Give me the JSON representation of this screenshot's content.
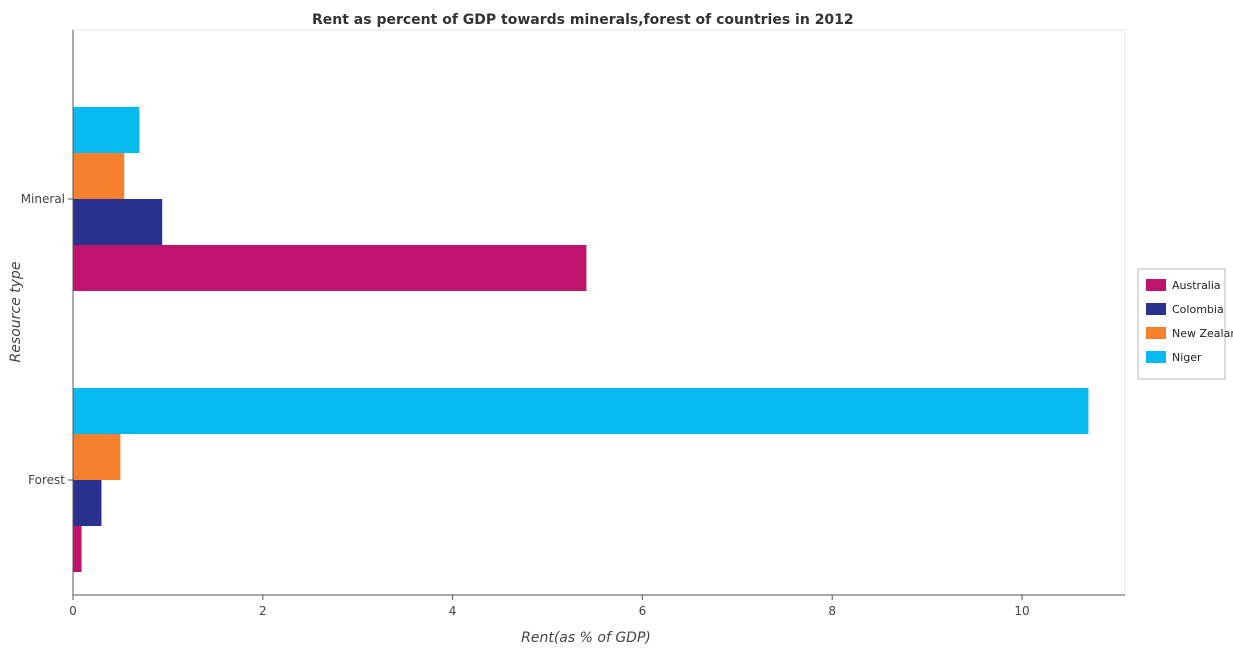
{
  "chart_data": {
    "type": "bar",
    "orientation": "horizontal",
    "title": "Rent as percent of GDP towards minerals,forest of countries in 2012",
    "xlabel": "Rent(as % of GDP)",
    "ylabel": "Resource type",
    "categories": [
      "Mineral",
      "Forest"
    ],
    "series": [
      {
        "name": "Australia",
        "color": "#c0136e",
        "values": [
          5.41,
          0.09
        ]
      },
      {
        "name": "Colombia",
        "color": "#29318e",
        "values": [
          0.94,
          0.3
        ]
      },
      {
        "name": "New Zealand",
        "color": "#f7802f",
        "values": [
          0.54,
          0.5
        ]
      },
      {
        "name": "Niger",
        "color": "#06b9ef",
        "values": [
          0.7,
          10.7
        ]
      }
    ],
    "xlim": [
      0,
      11.3
    ],
    "xticks": [
      0,
      2,
      4,
      6,
      8,
      10
    ],
    "xtick_labels": [
      "0",
      "2",
      "4",
      "6",
      "8",
      "10"
    ],
    "grid": false,
    "legend_position": "right"
  }
}
